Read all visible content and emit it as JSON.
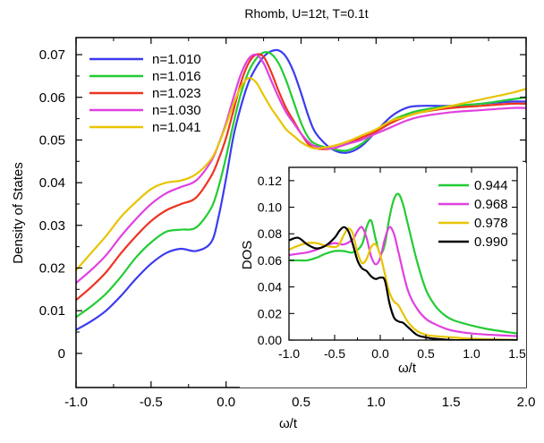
{
  "chart_data": [
    {
      "type": "line",
      "title": "Rhomb, U=12t, T=0.1t",
      "xlabel": "ω/t",
      "ylabel": "Density of States",
      "xlim": [
        -1.0,
        2.0
      ],
      "ylim": [
        -0.008,
        0.074
      ],
      "xticks": [
        -1.0,
        -0.5,
        0.0,
        0.5,
        1.0,
        1.5,
        2.0
      ],
      "xtick_labels": [
        "-1.0",
        "-0.5",
        "0.0",
        "0.5",
        "1.0",
        "1.5",
        "2.0"
      ],
      "yticks": [
        0,
        0.01,
        0.02,
        0.03,
        0.04,
        0.05,
        0.06,
        0.07
      ],
      "ytick_labels": [
        "0",
        "0.01",
        "0.02",
        "0.03",
        "0.04",
        "0.05",
        "0.06",
        "0.07"
      ],
      "grid": false,
      "legend": "top-left",
      "series": [
        {
          "name": "n=1.010",
          "color": "#3b3bf0",
          "x": [
            -1.0,
            -0.9,
            -0.8,
            -0.7,
            -0.6,
            -0.5,
            -0.4,
            -0.3,
            -0.2,
            -0.1,
            -0.05,
            0.0,
            0.05,
            0.1,
            0.15,
            0.2,
            0.25,
            0.3,
            0.35,
            0.4,
            0.45,
            0.5,
            0.55,
            0.6,
            0.7,
            0.8,
            0.9,
            1.0,
            1.1,
            1.2,
            1.3,
            1.5,
            1.7,
            1.9,
            2.0
          ],
          "y": [
            0.0055,
            0.0075,
            0.01,
            0.0135,
            0.0175,
            0.021,
            0.0235,
            0.0245,
            0.024,
            0.026,
            0.032,
            0.041,
            0.051,
            0.058,
            0.0635,
            0.067,
            0.0695,
            0.0708,
            0.071,
            0.0695,
            0.066,
            0.061,
            0.0555,
            0.0515,
            0.048,
            0.047,
            0.0485,
            0.052,
            0.0555,
            0.0575,
            0.058,
            0.058,
            0.0585,
            0.059,
            0.059
          ]
        },
        {
          "name": "n=1.016",
          "color": "#22cc33",
          "x": [
            -1.0,
            -0.9,
            -0.8,
            -0.7,
            -0.6,
            -0.5,
            -0.4,
            -0.3,
            -0.2,
            -0.1,
            -0.05,
            0.0,
            0.05,
            0.1,
            0.15,
            0.2,
            0.25,
            0.3,
            0.35,
            0.4,
            0.45,
            0.5,
            0.55,
            0.6,
            0.7,
            0.8,
            0.9,
            1.0,
            1.1,
            1.2,
            1.3,
            1.5,
            1.7,
            1.9,
            2.0
          ],
          "y": [
            0.0085,
            0.011,
            0.014,
            0.018,
            0.0225,
            0.026,
            0.0285,
            0.029,
            0.0295,
            0.034,
            0.039,
            0.046,
            0.054,
            0.061,
            0.066,
            0.069,
            0.0705,
            0.0702,
            0.068,
            0.064,
            0.059,
            0.054,
            0.0505,
            0.049,
            0.048,
            0.0475,
            0.049,
            0.052,
            0.0545,
            0.056,
            0.057,
            0.058,
            0.0585,
            0.0595,
            0.06
          ]
        },
        {
          "name": "n=1.023",
          "color": "#ee3322",
          "x": [
            -1.0,
            -0.9,
            -0.8,
            -0.7,
            -0.6,
            -0.5,
            -0.4,
            -0.3,
            -0.2,
            -0.1,
            -0.05,
            0.0,
            0.05,
            0.1,
            0.15,
            0.2,
            0.25,
            0.3,
            0.35,
            0.4,
            0.45,
            0.5,
            0.55,
            0.6,
            0.7,
            0.8,
            0.9,
            1.0,
            1.1,
            1.2,
            1.3,
            1.5,
            1.7,
            1.9,
            2.0
          ],
          "y": [
            0.0125,
            0.0155,
            0.019,
            0.0235,
            0.0275,
            0.031,
            0.0335,
            0.035,
            0.0365,
            0.0415,
            0.0455,
            0.0505,
            0.057,
            0.0635,
            0.068,
            0.07,
            0.0695,
            0.066,
            0.0615,
            0.0575,
            0.0545,
            0.0515,
            0.049,
            0.048,
            0.048,
            0.049,
            0.0505,
            0.052,
            0.054,
            0.0555,
            0.0565,
            0.0575,
            0.058,
            0.0585,
            0.0585
          ]
        },
        {
          "name": "n=1.030",
          "color": "#e040e0",
          "x": [
            -1.0,
            -0.9,
            -0.8,
            -0.7,
            -0.6,
            -0.5,
            -0.4,
            -0.3,
            -0.2,
            -0.1,
            -0.05,
            0.0,
            0.05,
            0.1,
            0.15,
            0.2,
            0.25,
            0.3,
            0.35,
            0.4,
            0.45,
            0.5,
            0.55,
            0.6,
            0.7,
            0.8,
            0.9,
            1.0,
            1.1,
            1.2,
            1.3,
            1.5,
            1.7,
            1.9,
            2.0
          ],
          "y": [
            0.0165,
            0.0195,
            0.023,
            0.0275,
            0.0315,
            0.035,
            0.0375,
            0.039,
            0.0405,
            0.045,
            0.049,
            0.054,
            0.06,
            0.0655,
            0.069,
            0.07,
            0.068,
            0.064,
            0.06,
            0.0565,
            0.054,
            0.0515,
            0.0495,
            0.0485,
            0.048,
            0.049,
            0.05,
            0.0515,
            0.053,
            0.0545,
            0.0555,
            0.0565,
            0.057,
            0.0575,
            0.0575
          ]
        },
        {
          "name": "n=1.041",
          "color": "#e8c400",
          "x": [
            -1.0,
            -0.9,
            -0.8,
            -0.7,
            -0.6,
            -0.5,
            -0.4,
            -0.3,
            -0.2,
            -0.1,
            -0.05,
            0.0,
            0.05,
            0.1,
            0.15,
            0.2,
            0.25,
            0.3,
            0.35,
            0.4,
            0.45,
            0.5,
            0.55,
            0.6,
            0.7,
            0.8,
            0.9,
            1.0,
            1.1,
            1.2,
            1.3,
            1.5,
            1.7,
            1.9,
            2.0
          ],
          "y": [
            0.0195,
            0.0235,
            0.0275,
            0.032,
            0.0355,
            0.0385,
            0.04,
            0.0405,
            0.042,
            0.0455,
            0.049,
            0.0535,
            0.0585,
            0.0625,
            0.0645,
            0.0635,
            0.0605,
            0.0575,
            0.055,
            0.0525,
            0.051,
            0.0495,
            0.0485,
            0.048,
            0.0485,
            0.0495,
            0.051,
            0.0525,
            0.0545,
            0.0555,
            0.0565,
            0.058,
            0.0595,
            0.061,
            0.062
          ]
        }
      ]
    },
    {
      "type": "line",
      "title": "",
      "xlabel": "ω/t",
      "ylabel": "DOS",
      "xlim": [
        -1.0,
        1.5
      ],
      "ylim": [
        0,
        0.13
      ],
      "xticks": [
        -1.0,
        -0.5,
        0.0,
        0.5,
        1.0,
        1.5
      ],
      "xtick_labels": [
        "-1.0",
        "-0.5",
        "0.0",
        "0.5",
        "1.0",
        "1.5"
      ],
      "yticks": [
        0.0,
        0.02,
        0.04,
        0.06,
        0.08,
        0.1,
        0.12
      ],
      "ytick_labels": [
        "0.00",
        "0.02",
        "0.04",
        "0.06",
        "0.08",
        "0.10",
        "0.12"
      ],
      "grid": false,
      "legend": "top-right",
      "series": [
        {
          "name": "0.944",
          "color": "#22cc33",
          "x": [
            -1.0,
            -0.9,
            -0.8,
            -0.7,
            -0.6,
            -0.5,
            -0.4,
            -0.3,
            -0.2,
            -0.15,
            -0.1,
            -0.05,
            0.0,
            0.05,
            0.1,
            0.15,
            0.2,
            0.25,
            0.3,
            0.4,
            0.5,
            0.6,
            0.7,
            0.8,
            1.0,
            1.2,
            1.5
          ],
          "y": [
            0.06,
            0.06,
            0.06,
            0.062,
            0.065,
            0.067,
            0.067,
            0.066,
            0.072,
            0.085,
            0.09,
            0.076,
            0.065,
            0.072,
            0.092,
            0.106,
            0.11,
            0.102,
            0.088,
            0.06,
            0.038,
            0.026,
            0.019,
            0.015,
            0.011,
            0.008,
            0.005
          ]
        },
        {
          "name": "0.968",
          "color": "#e040e0",
          "x": [
            -1.0,
            -0.9,
            -0.8,
            -0.7,
            -0.6,
            -0.5,
            -0.4,
            -0.3,
            -0.25,
            -0.2,
            -0.15,
            -0.1,
            -0.05,
            0.0,
            0.05,
            0.1,
            0.15,
            0.2,
            0.3,
            0.4,
            0.5,
            0.6,
            0.7,
            0.8,
            1.0,
            1.2,
            1.5
          ],
          "y": [
            0.064,
            0.065,
            0.066,
            0.068,
            0.071,
            0.073,
            0.072,
            0.076,
            0.082,
            0.085,
            0.077,
            0.063,
            0.057,
            0.062,
            0.076,
            0.085,
            0.08,
            0.066,
            0.038,
            0.024,
            0.016,
            0.012,
            0.009,
            0.007,
            0.005,
            0.004,
            0.003
          ]
        },
        {
          "name": "0.978",
          "color": "#e8c400",
          "x": [
            -1.0,
            -0.9,
            -0.8,
            -0.7,
            -0.6,
            -0.5,
            -0.45,
            -0.4,
            -0.35,
            -0.3,
            -0.25,
            -0.2,
            -0.15,
            -0.1,
            -0.05,
            0.0,
            0.05,
            0.1,
            0.15,
            0.2,
            0.3,
            0.4,
            0.5,
            0.6,
            0.8,
            1.0,
            1.5
          ],
          "y": [
            0.068,
            0.071,
            0.073,
            0.073,
            0.071,
            0.07,
            0.072,
            0.079,
            0.084,
            0.08,
            0.066,
            0.058,
            0.061,
            0.07,
            0.072,
            0.064,
            0.05,
            0.036,
            0.029,
            0.026,
            0.014,
            0.007,
            0.004,
            0.003,
            0.002,
            0.001,
            0.0
          ]
        },
        {
          "name": "0.990",
          "color": "#000000",
          "x": [
            -1.0,
            -0.9,
            -0.8,
            -0.7,
            -0.6,
            -0.5,
            -0.45,
            -0.4,
            -0.35,
            -0.3,
            -0.25,
            -0.2,
            -0.15,
            -0.1,
            -0.05,
            0.0,
            0.05,
            0.1,
            0.15,
            0.2,
            0.25,
            0.3,
            0.4,
            0.5,
            0.6,
            0.8,
            1.0,
            1.5
          ],
          "y": [
            0.075,
            0.077,
            0.072,
            0.069,
            0.071,
            0.077,
            0.082,
            0.085,
            0.082,
            0.072,
            0.06,
            0.054,
            0.052,
            0.048,
            0.046,
            0.047,
            0.045,
            0.028,
            0.017,
            0.014,
            0.013,
            0.01,
            0.004,
            0.002,
            0.001,
            0.0,
            0.0,
            0.0
          ]
        }
      ]
    }
  ]
}
